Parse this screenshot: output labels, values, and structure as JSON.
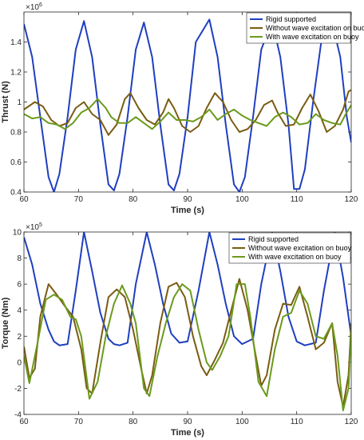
{
  "chart_data": [
    {
      "type": "line",
      "xlabel": "Time (s)",
      "ylabel": "Thrust (N)",
      "exponent_base": "×10",
      "exponent_power": "6",
      "xlim": [
        60,
        120
      ],
      "ylim": [
        0.4,
        1.6
      ],
      "x_ticks": [
        "60",
        "70",
        "80",
        "90",
        "100",
        "110",
        "120"
      ],
      "y_ticks": [
        "0.4",
        "0.6",
        "0.8",
        "1",
        "1.2",
        "1.4"
      ],
      "legend_position": "top-right",
      "series": [
        {
          "name": "Rigid supported",
          "color": "#1f3fbf",
          "points": [
            [
              60,
              1.52
            ],
            [
              61.5,
              1.3
            ],
            [
              63,
              0.9
            ],
            [
              64.5,
              0.5
            ],
            [
              65.5,
              0.4
            ],
            [
              66.5,
              0.52
            ],
            [
              68,
              0.9
            ],
            [
              69.5,
              1.35
            ],
            [
              71,
              1.54
            ],
            [
              72.5,
              1.3
            ],
            [
              74,
              0.85
            ],
            [
              75.5,
              0.45
            ],
            [
              76.5,
              0.41
            ],
            [
              77.5,
              0.52
            ],
            [
              79,
              0.9
            ],
            [
              80.5,
              1.35
            ],
            [
              82,
              1.53
            ],
            [
              83.5,
              1.3
            ],
            [
              85,
              0.85
            ],
            [
              86.5,
              0.45
            ],
            [
              87.5,
              0.41
            ],
            [
              88.5,
              0.52
            ],
            [
              90,
              0.9
            ],
            [
              91.5,
              1.4
            ],
            [
              94,
              1.55
            ],
            [
              95.5,
              1.3
            ],
            [
              97,
              0.85
            ],
            [
              98.5,
              0.45
            ],
            [
              99.5,
              0.4
            ],
            [
              100.5,
              0.5
            ],
            [
              102,
              0.9
            ],
            [
              103.5,
              1.35
            ],
            [
              105.5,
              1.54
            ],
            [
              107,
              1.3
            ],
            [
              108.5,
              0.85
            ],
            [
              109.5,
              0.42
            ],
            [
              110.5,
              0.42
            ],
            [
              111.5,
              0.55
            ],
            [
              113,
              1.0
            ],
            [
              114.5,
              1.4
            ],
            [
              116.5,
              1.53
            ],
            [
              118,
              1.3
            ],
            [
              119.2,
              0.9
            ],
            [
              120,
              0.73
            ]
          ]
        },
        {
          "name": "Without wave excitation on buoy",
          "color": "#7a5c12",
          "points": [
            [
              60,
              0.95
            ],
            [
              62,
              1.0
            ],
            [
              63.5,
              0.97
            ],
            [
              65,
              0.88
            ],
            [
              66.5,
              0.84
            ],
            [
              68,
              0.86
            ],
            [
              69.5,
              0.96
            ],
            [
              71,
              1.0
            ],
            [
              72.5,
              0.92
            ],
            [
              74,
              0.88
            ],
            [
              75.5,
              0.78
            ],
            [
              77,
              0.85
            ],
            [
              78.5,
              1.02
            ],
            [
              79.5,
              1.06
            ],
            [
              81,
              0.96
            ],
            [
              82.5,
              0.88
            ],
            [
              84,
              0.85
            ],
            [
              85.5,
              0.93
            ],
            [
              86.5,
              1.02
            ],
            [
              87.5,
              0.96
            ],
            [
              89,
              0.84
            ],
            [
              90.5,
              0.8
            ],
            [
              92,
              0.84
            ],
            [
              93.5,
              0.96
            ],
            [
              95,
              1.06
            ],
            [
              96.5,
              1.0
            ],
            [
              98,
              0.88
            ],
            [
              99.5,
              0.8
            ],
            [
              101,
              0.82
            ],
            [
              102.5,
              0.88
            ],
            [
              104,
              0.98
            ],
            [
              105.5,
              1.01
            ],
            [
              106.5,
              0.93
            ],
            [
              108,
              0.84
            ],
            [
              109.5,
              0.85
            ],
            [
              111,
              0.96
            ],
            [
              112.5,
              1.05
            ],
            [
              114,
              0.94
            ],
            [
              115.5,
              0.8
            ],
            [
              117,
              0.84
            ],
            [
              118.5,
              0.95
            ],
            [
              119.5,
              1.07
            ],
            [
              120,
              1.08
            ]
          ]
        },
        {
          "name": "With wave excitation on buoy",
          "color": "#6b9a1c",
          "points": [
            [
              60,
              0.92
            ],
            [
              61.5,
              0.89
            ],
            [
              63,
              0.9
            ],
            [
              64.5,
              0.86
            ],
            [
              66,
              0.85
            ],
            [
              67.5,
              0.82
            ],
            [
              69,
              0.86
            ],
            [
              70.5,
              0.93
            ],
            [
              72,
              0.96
            ],
            [
              73.5,
              1.02
            ],
            [
              75,
              0.96
            ],
            [
              76,
              0.9
            ],
            [
              77.5,
              0.86
            ],
            [
              79,
              0.86
            ],
            [
              80.5,
              0.9
            ],
            [
              82,
              0.86
            ],
            [
              83.5,
              0.82
            ],
            [
              85,
              0.87
            ],
            [
              86.5,
              0.93
            ],
            [
              88,
              0.88
            ],
            [
              89.5,
              0.88
            ],
            [
              91,
              0.87
            ],
            [
              92.5,
              0.9
            ],
            [
              94,
              0.95
            ],
            [
              95.5,
              0.88
            ],
            [
              97,
              0.92
            ],
            [
              98.5,
              0.95
            ],
            [
              100,
              0.91
            ],
            [
              101.5,
              0.88
            ],
            [
              103,
              0.86
            ],
            [
              104.5,
              0.84
            ],
            [
              106,
              0.9
            ],
            [
              107.5,
              0.93
            ],
            [
              109,
              0.9
            ],
            [
              110.5,
              0.85
            ],
            [
              112,
              0.86
            ],
            [
              113.5,
              0.92
            ],
            [
              115,
              0.88
            ],
            [
              116.5,
              0.86
            ],
            [
              118,
              0.85
            ],
            [
              119,
              0.92
            ],
            [
              120,
              0.98
            ]
          ]
        }
      ]
    },
    {
      "type": "line",
      "xlabel": "Time (s)",
      "ylabel": "Torque (Nm)",
      "exponent_base": "×10",
      "exponent_power": "5",
      "xlim": [
        60,
        120
      ],
      "ylim": [
        -4,
        10
      ],
      "x_ticks": [
        "60",
        "70",
        "80",
        "90",
        "100",
        "110",
        "120"
      ],
      "y_ticks": [
        "-4",
        "-2",
        "0",
        "2",
        "4",
        "6",
        "8",
        "10"
      ],
      "legend_position": "top-right",
      "series": [
        {
          "name": "Rigid supported",
          "color": "#1f3fbf",
          "points": [
            [
              60,
              9.6
            ],
            [
              61.5,
              7.5
            ],
            [
              63,
              4.5
            ],
            [
              64.5,
              2.5
            ],
            [
              65.5,
              1.6
            ],
            [
              66.5,
              1.3
            ],
            [
              68,
              1.4
            ],
            [
              69.5,
              5.5
            ],
            [
              71,
              10.0
            ],
            [
              72.5,
              7.0
            ],
            [
              74,
              3.8
            ],
            [
              75.5,
              1.8
            ],
            [
              76.5,
              1.4
            ],
            [
              77.5,
              1.3
            ],
            [
              79,
              1.5
            ],
            [
              80.5,
              6.0
            ],
            [
              82.5,
              10.0
            ],
            [
              84,
              7.5
            ],
            [
              85.5,
              4.5
            ],
            [
              87,
              2.2
            ],
            [
              88.5,
              1.5
            ],
            [
              90,
              1.6
            ],
            [
              92,
              5.5
            ],
            [
              94,
              10.0
            ],
            [
              95.5,
              7.5
            ],
            [
              97,
              4.5
            ],
            [
              98.5,
              2.0
            ],
            [
              100,
              1.4
            ],
            [
              102,
              1.8
            ],
            [
              103.5,
              6.0
            ],
            [
              105.5,
              10.0
            ],
            [
              107,
              7.0
            ],
            [
              108.5,
              3.5
            ],
            [
              110,
              1.6
            ],
            [
              111.5,
              1.3
            ],
            [
              113.5,
              1.5
            ],
            [
              115,
              5.5
            ],
            [
              117,
              10.0
            ],
            [
              118.5,
              6.5
            ],
            [
              120,
              2.0
            ]
          ]
        },
        {
          "name": "Without wave excitation on buoy",
          "color": "#7a5c12",
          "points": [
            [
              60,
              1.2
            ],
            [
              61,
              -1.2
            ],
            [
              62,
              -0.5
            ],
            [
              63,
              3.5
            ],
            [
              64.5,
              6.0
            ],
            [
              66,
              5.2
            ],
            [
              67.5,
              4.3
            ],
            [
              69,
              3.5
            ],
            [
              70.5,
              1.0
            ],
            [
              71.5,
              -2.0
            ],
            [
              72.5,
              -2.4
            ],
            [
              74,
              1.5
            ],
            [
              75.5,
              5.0
            ],
            [
              77,
              5.6
            ],
            [
              78.5,
              5.0
            ],
            [
              80,
              2.5
            ],
            [
              81.5,
              -0.5
            ],
            [
              82.5,
              -2.4
            ],
            [
              83.5,
              -1.0
            ],
            [
              85,
              3.0
            ],
            [
              86.5,
              5.8
            ],
            [
              88,
              6.1
            ],
            [
              89.5,
              5.0
            ],
            [
              91,
              2.0
            ],
            [
              92.5,
              -0.3
            ],
            [
              93.5,
              -1.0
            ],
            [
              95,
              0.2
            ],
            [
              96.5,
              1.5
            ],
            [
              98,
              4.0
            ],
            [
              99.5,
              6.4
            ],
            [
              101,
              4.0
            ],
            [
              102.5,
              0.5
            ],
            [
              103.5,
              -1.8
            ],
            [
              104.5,
              -1.0
            ],
            [
              106,
              2.5
            ],
            [
              107.5,
              4.5
            ],
            [
              109,
              4.4
            ],
            [
              110.5,
              5.8
            ],
            [
              112,
              3.5
            ],
            [
              113.5,
              1.0
            ],
            [
              115,
              1.5
            ],
            [
              116.5,
              3.0
            ],
            [
              117.5,
              -1.5
            ],
            [
              118.5,
              -3.4
            ],
            [
              119.5,
              -1.0
            ],
            [
              120,
              3.0
            ]
          ]
        },
        {
          "name": "With wave excitation on buoy",
          "color": "#6b9a1c",
          "points": [
            [
              60,
              0.5
            ],
            [
              61,
              -1.6
            ],
            [
              62.5,
              1.5
            ],
            [
              64,
              4.8
            ],
            [
              65.5,
              5.2
            ],
            [
              67,
              4.8
            ],
            [
              68.5,
              3.5
            ],
            [
              69.5,
              3.3
            ],
            [
              70.5,
              2.0
            ],
            [
              72,
              -2.8
            ],
            [
              73.5,
              -1.5
            ],
            [
              75,
              2.0
            ],
            [
              76.5,
              4.5
            ],
            [
              78,
              5.9
            ],
            [
              79.5,
              4.5
            ],
            [
              80.5,
              3.0
            ],
            [
              82,
              -2.0
            ],
            [
              83,
              -2.6
            ],
            [
              84.5,
              0.5
            ],
            [
              86,
              3.0
            ],
            [
              87.5,
              5.0
            ],
            [
              89,
              6.0
            ],
            [
              90.5,
              5.5
            ],
            [
              92,
              2.5
            ],
            [
              93.5,
              0.0
            ],
            [
              94.5,
              -0.6
            ],
            [
              96,
              0.5
            ],
            [
              97.5,
              2.0
            ],
            [
              99,
              6.0
            ],
            [
              100.5,
              6.0
            ],
            [
              101.5,
              3.5
            ],
            [
              103,
              -1.5
            ],
            [
              104.5,
              -2.6
            ],
            [
              106,
              1.0
            ],
            [
              107.5,
              3.5
            ],
            [
              109,
              3.8
            ],
            [
              110.5,
              5.5
            ],
            [
              112,
              4.5
            ],
            [
              113.5,
              2.0
            ],
            [
              115,
              1.8
            ],
            [
              116.5,
              3.0
            ],
            [
              117.5,
              0.5
            ],
            [
              118.5,
              -3.7
            ],
            [
              119.5,
              -2.0
            ],
            [
              120,
              2.5
            ]
          ]
        }
      ]
    }
  ]
}
